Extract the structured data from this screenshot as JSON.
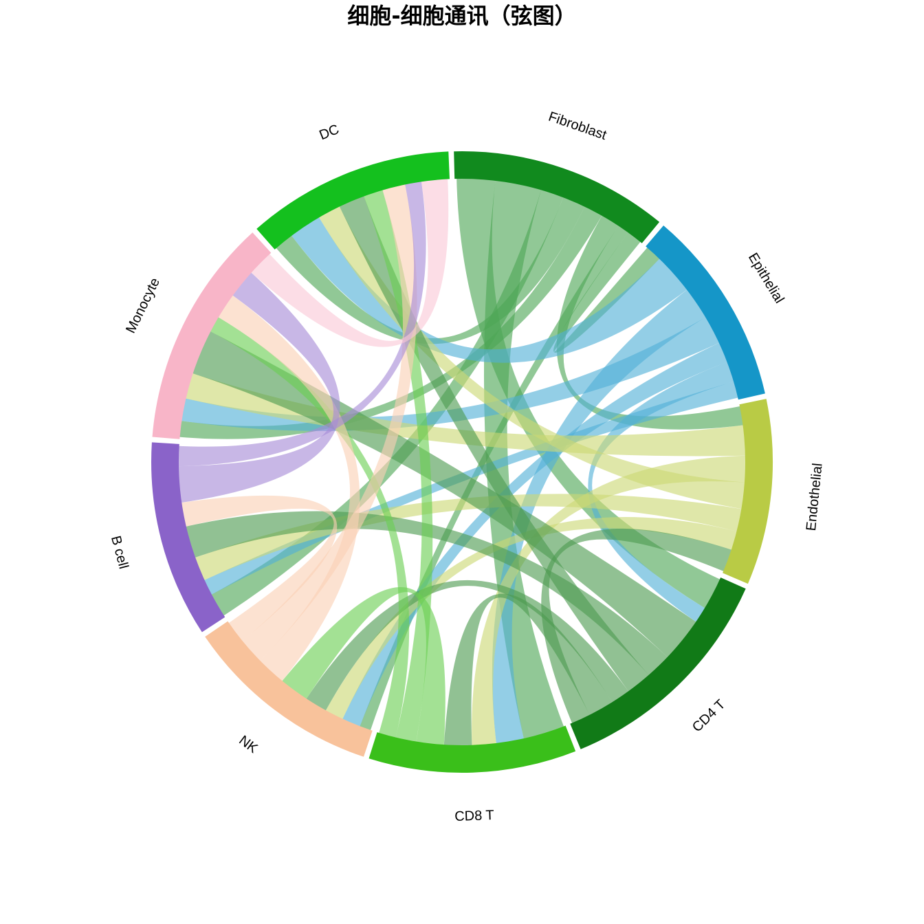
{
  "chart_data": {
    "type": "chord",
    "title": "细胞-细胞通讯（弦图）",
    "sectors": [
      {
        "name": "Fibroblast",
        "color": "#118a1e",
        "weight": 8.0
      },
      {
        "name": "Epithelial",
        "color": "#1596c8",
        "weight": 7.2
      },
      {
        "name": "Endothelial",
        "color": "#b9cb45",
        "weight": 6.8
      },
      {
        "name": "CD4 T",
        "color": "#117a17",
        "weight": 8.5
      },
      {
        "name": "CD8 T",
        "color": "#3abf1a",
        "weight": 7.6
      },
      {
        "name": "NK",
        "color": "#f8c29b",
        "weight": 7.3
      },
      {
        "name": "B cell",
        "color": "#8a63c9",
        "weight": 7.2
      },
      {
        "name": "Monocyte",
        "color": "#f8b5c8",
        "weight": 8.4
      },
      {
        "name": "DC",
        "color": "#14c01e",
        "weight": 7.6
      }
    ],
    "links": [
      [
        "Fibroblast",
        "CD4 T",
        1.0
      ],
      [
        "Fibroblast",
        "CD8 T",
        1.2
      ],
      [
        "Fibroblast",
        "B cell",
        0.6
      ],
      [
        "Fibroblast",
        "DC",
        0.6
      ],
      [
        "Fibroblast",
        "Monocyte",
        0.5
      ],
      [
        "Fibroblast",
        "Endothelial",
        0.5
      ],
      [
        "Fibroblast",
        "NK",
        0.3
      ],
      [
        "Fibroblast",
        "Epithelial",
        0.4
      ],
      [
        "Epithelial",
        "DC",
        1.0
      ],
      [
        "Epithelial",
        "CD8 T",
        0.8
      ],
      [
        "Epithelial",
        "Monocyte",
        0.7
      ],
      [
        "Epithelial",
        "NK",
        0.5
      ],
      [
        "Epithelial",
        "CD4 T",
        0.5
      ],
      [
        "Epithelial",
        "B cell",
        0.4
      ],
      [
        "Endothelial",
        "Monocyte",
        0.8
      ],
      [
        "Endothelial",
        "CD8 T",
        0.7
      ],
      [
        "Endothelial",
        "DC",
        0.7
      ],
      [
        "Endothelial",
        "B cell",
        0.6
      ],
      [
        "Endothelial",
        "NK",
        0.5
      ],
      [
        "CD4 T",
        "Monocyte",
        1.4
      ],
      [
        "CD4 T",
        "B cell",
        0.8
      ],
      [
        "CD4 T",
        "DC",
        0.8
      ],
      [
        "CD4 T",
        "NK",
        0.6
      ],
      [
        "CD4 T",
        "CD8 T",
        0.8
      ],
      [
        "CD4 T",
        "Endothelial",
        0.6
      ],
      [
        "CD8 T",
        "NK",
        0.8
      ],
      [
        "CD8 T",
        "DC",
        0.6
      ],
      [
        "CD8 T",
        "Monocyte",
        0.5
      ],
      [
        "NK",
        "Monocyte",
        0.8
      ],
      [
        "NK",
        "DC",
        0.7
      ],
      [
        "NK",
        "B cell",
        0.6
      ],
      [
        "B cell",
        "Monocyte",
        0.9
      ],
      [
        "B cell",
        "DC",
        0.5
      ],
      [
        "Monocyte",
        "DC",
        0.8
      ]
    ]
  }
}
